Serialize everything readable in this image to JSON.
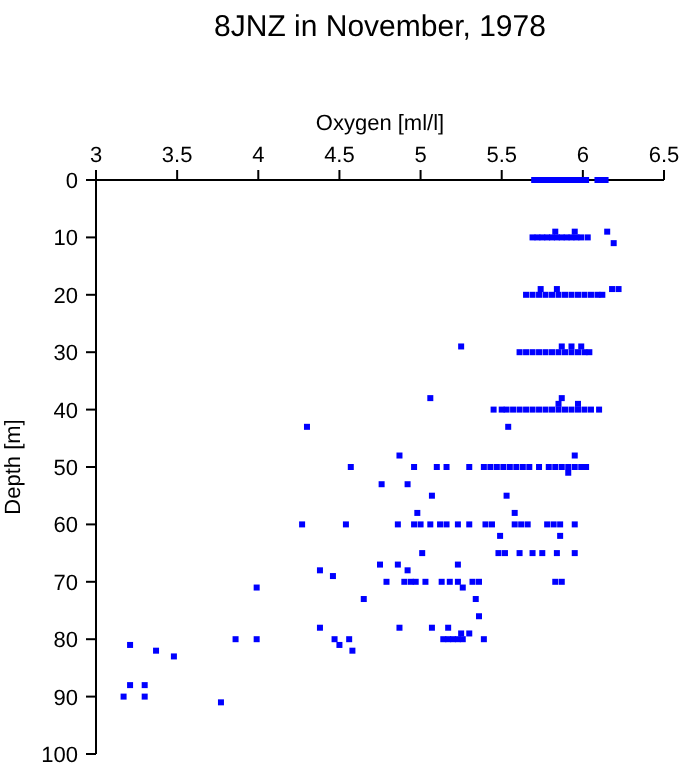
{
  "chart_data": {
    "type": "scatter",
    "title": "8JNZ in November, 1978",
    "xlabel": "Oxygen [ml/l]",
    "ylabel": "Depth [m]",
    "xlim": [
      3,
      6.5
    ],
    "xticks": [
      3,
      3.5,
      4,
      4.5,
      5,
      5.5,
      6,
      6.5
    ],
    "ylim": [
      100,
      0
    ],
    "yticks": [
      0,
      10,
      20,
      30,
      40,
      50,
      60,
      70,
      80,
      90,
      100
    ],
    "grid": false,
    "marker": "square",
    "series": [
      {
        "color": "#0000ff",
        "x": [
          5.7,
          5.73,
          5.76,
          5.79,
          5.82,
          5.85,
          5.88,
          5.91,
          5.94,
          5.97,
          6.0,
          6.02,
          6.09,
          6.12,
          6.14,
          5.69,
          5.72,
          5.75,
          5.78,
          5.81,
          5.84,
          5.87,
          5.9,
          5.93,
          5.96,
          5.99,
          6.03,
          5.83,
          5.95,
          6.15,
          6.19,
          5.65,
          5.69,
          5.73,
          5.77,
          5.81,
          5.85,
          5.89,
          5.93,
          5.97,
          6.01,
          6.05,
          6.09,
          6.12,
          5.74,
          5.84,
          6.18,
          6.22,
          5.61,
          5.65,
          5.69,
          5.73,
          5.77,
          5.81,
          5.85,
          5.89,
          5.93,
          5.97,
          6.01,
          6.04,
          5.25,
          5.87,
          5.93,
          5.99,
          5.45,
          5.5,
          5.53,
          5.57,
          5.61,
          5.65,
          5.69,
          5.73,
          5.77,
          5.81,
          5.85,
          5.89,
          5.93,
          5.97,
          6.01,
          6.05,
          6.1,
          5.06,
          4.3,
          5.54,
          5.87,
          5.85,
          5.97,
          4.57,
          4.96,
          5.1,
          5.16,
          5.3,
          5.39,
          5.43,
          5.47,
          5.51,
          5.55,
          5.59,
          5.63,
          5.67,
          5.73,
          5.79,
          5.83,
          5.87,
          5.91,
          5.95,
          5.99,
          6.02,
          4.87,
          4.76,
          4.92,
          5.95,
          5.91,
          4.27,
          4.54,
          4.86,
          4.96,
          5.0,
          5.06,
          5.12,
          5.16,
          5.23,
          5.3,
          5.4,
          5.44,
          5.58,
          5.62,
          5.66,
          5.78,
          5.82,
          5.86,
          5.95,
          4.98,
          5.07,
          5.01,
          5.53,
          5.58,
          5.49,
          5.86,
          5.48,
          5.52,
          5.61,
          5.69,
          5.75,
          5.84,
          5.95,
          4.75,
          4.86,
          4.92,
          4.38,
          4.46,
          4.79,
          4.9,
          4.94,
          4.97,
          5.03,
          5.13,
          5.18,
          5.23,
          5.32,
          5.36,
          5.83,
          5.87,
          3.99,
          4.65,
          5.23,
          5.26,
          5.34,
          5.36,
          5.17,
          5.3,
          3.86,
          3.99,
          4.47,
          4.56,
          5.14,
          5.17,
          5.2,
          5.23,
          5.26,
          5.39,
          4.5,
          4.38,
          4.58,
          4.87,
          5.07,
          5.25,
          3.21,
          3.37,
          3.48,
          3.21,
          3.3,
          3.17,
          3.3,
          3.77
        ],
        "values": [
          0,
          0,
          0,
          0,
          0,
          0,
          0,
          0,
          0,
          0,
          0,
          0,
          0,
          0,
          0,
          10,
          10,
          10,
          10,
          10,
          10,
          10,
          10,
          10,
          10,
          10,
          10,
          9,
          9,
          9,
          11,
          20,
          20,
          20,
          20,
          20,
          20,
          20,
          20,
          20,
          20,
          20,
          20,
          20,
          19,
          19,
          19,
          19,
          30,
          30,
          30,
          30,
          30,
          30,
          30,
          30,
          30,
          30,
          30,
          30,
          29,
          29,
          29,
          29,
          40,
          40,
          40,
          40,
          40,
          40,
          40,
          40,
          40,
          40,
          40,
          40,
          40,
          40,
          40,
          40,
          40,
          38,
          43,
          43,
          38,
          39,
          39,
          50,
          50,
          50,
          50,
          50,
          50,
          50,
          50,
          50,
          50,
          50,
          50,
          50,
          50,
          50,
          50,
          50,
          50,
          50,
          50,
          50,
          48,
          53,
          53,
          48,
          51,
          60,
          60,
          60,
          60,
          60,
          60,
          60,
          60,
          60,
          60,
          60,
          60,
          60,
          60,
          60,
          60,
          60,
          60,
          60,
          58,
          55,
          65,
          55,
          58,
          62,
          62,
          65,
          65,
          65,
          65,
          65,
          65,
          65,
          67,
          67,
          68,
          68,
          69,
          70,
          70,
          70,
          70,
          70,
          70,
          70,
          70,
          70,
          70,
          70,
          70,
          71,
          73,
          67,
          71,
          73,
          76,
          78,
          79,
          80,
          80,
          80,
          80,
          80,
          80,
          80,
          80,
          80,
          80,
          81,
          78,
          82,
          78,
          78,
          79,
          81,
          82,
          83,
          88,
          88,
          90,
          90,
          91
        ]
      }
    ]
  }
}
